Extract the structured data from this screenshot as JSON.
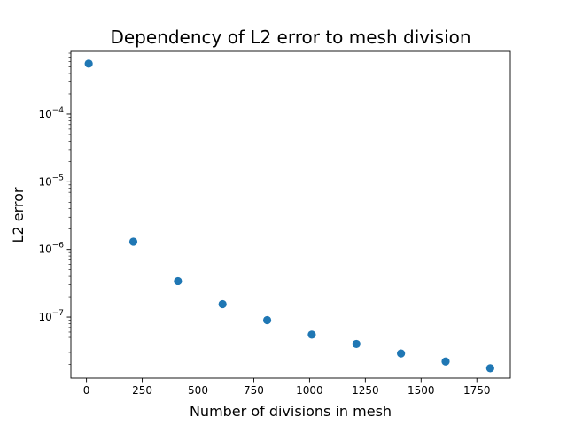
{
  "chart_data": {
    "type": "scatter",
    "title": "Dependency of L2 error to mesh division",
    "xlabel": "Number of divisions in mesh",
    "ylabel": "L2 error",
    "yscale": "log",
    "xlim": [
      -70,
      1900
    ],
    "ylim": [
      1.25e-08,
      0.00085
    ],
    "x_ticks": [
      0,
      250,
      500,
      750,
      1000,
      1250,
      1500,
      1750
    ],
    "y_ticks": [
      {
        "base": "10",
        "exp": "−4",
        "value": 0.0001
      },
      {
        "base": "10",
        "exp": "−5",
        "value": 1e-05
      },
      {
        "base": "10",
        "exp": "−6",
        "value": 1e-06
      },
      {
        "base": "10",
        "exp": "−7",
        "value": 1e-07
      }
    ],
    "grid": false,
    "marker_color": "#1f77b4",
    "points": [
      {
        "x": 10,
        "y": 0.00056
      },
      {
        "x": 210,
        "y": 1.3e-06
      },
      {
        "x": 410,
        "y": 3.4e-07
      },
      {
        "x": 610,
        "y": 1.55e-07
      },
      {
        "x": 810,
        "y": 9e-08
      },
      {
        "x": 1010,
        "y": 5.5e-08
      },
      {
        "x": 1210,
        "y": 4e-08
      },
      {
        "x": 1410,
        "y": 2.9e-08
      },
      {
        "x": 1610,
        "y": 2.2e-08
      },
      {
        "x": 1810,
        "y": 1.75e-08
      }
    ]
  }
}
